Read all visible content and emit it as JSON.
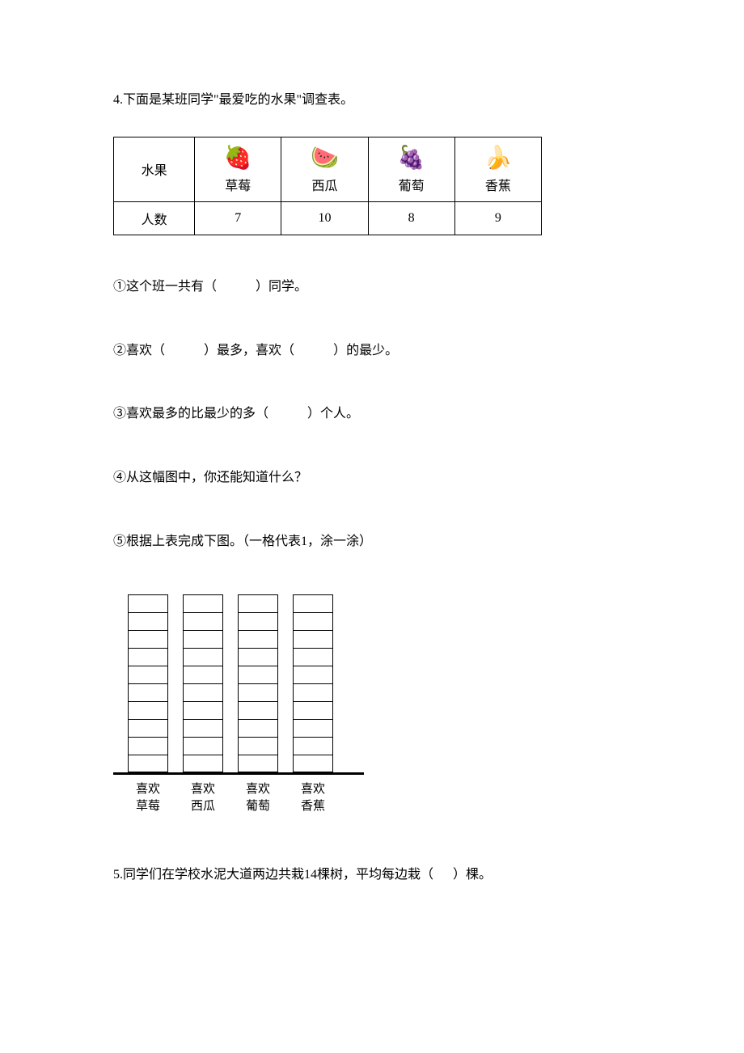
{
  "q4": {
    "title": "4.下面是某班同学\"最爱吃的水果\"调查表。",
    "table": {
      "row_labels": [
        "水果",
        "人数"
      ],
      "fruits": [
        {
          "icon": "🍓",
          "name": "草莓",
          "count": "7"
        },
        {
          "icon": "🍉",
          "name": "西瓜",
          "count": "10"
        },
        {
          "icon": "🍇",
          "name": "葡萄",
          "count": "8"
        },
        {
          "icon": "🍌",
          "name": "香蕉",
          "count": "9"
        }
      ]
    },
    "subs": {
      "s1_a": "①这个班一共有（",
      "s1_b": "）同学。",
      "s2_a": "②喜欢（",
      "s2_b": "）最多，喜欢（",
      "s2_c": "）的最少。",
      "s3_a": "③喜欢最多的比最少的多（",
      "s3_b": "）个人。",
      "s4": "④从这幅图中，你还能知道什么？",
      "s5": "⑤根据上表完成下图。（一格代表1，涂一涂）"
    },
    "chart": {
      "labels": [
        {
          "line1": "喜欢",
          "line2": "草莓"
        },
        {
          "line1": "喜欢",
          "line2": "西瓜"
        },
        {
          "line1": "喜欢",
          "line2": "葡萄"
        },
        {
          "line1": "喜欢",
          "line2": "香蕉"
        }
      ],
      "cells_per_bar": 10,
      "bar_colors": [
        "#ffffff",
        "#ffffff",
        "#ffffff",
        "#ffffff"
      ],
      "border_color": "#000000",
      "axis_color": "#000000"
    }
  },
  "q5": {
    "text_a": "5.同学们在学校水泥大道两边共栽14棵树，平均每边栽（",
    "text_b": "）棵。"
  }
}
